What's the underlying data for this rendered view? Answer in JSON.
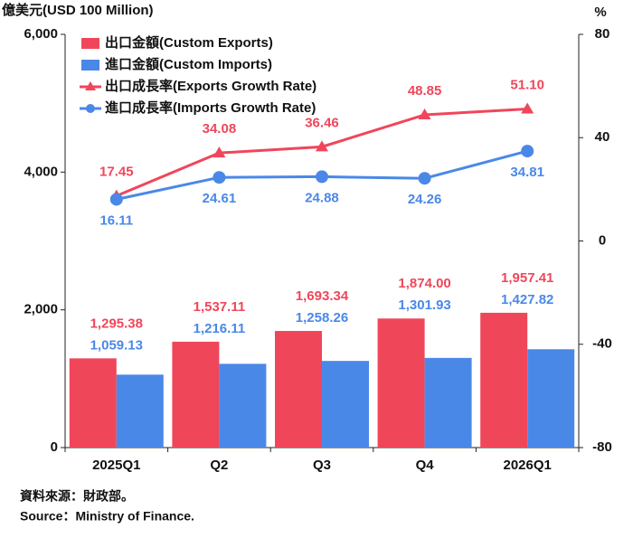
{
  "chart_data": {
    "type": "bar",
    "y_label": "億美元(USD 100 Million)",
    "y2_label": "%",
    "categories": [
      "2025Q1",
      "Q2",
      "Q3",
      "Q4",
      "2026Q1"
    ],
    "ylim": [
      0,
      6000
    ],
    "yticks": [
      0,
      {
        "value": 2000,
        "label": "2,000"
      },
      {
        "value": 4000,
        "label": "4,000"
      },
      {
        "value": 6000,
        "label": "6,000"
      }
    ],
    "y2lim": [
      -80,
      80
    ],
    "y2ticks": [
      -80,
      -40,
      0,
      40,
      80
    ],
    "legend": "upper left",
    "series": [
      {
        "name": "出口金額(Custom Exports)",
        "type": "bar",
        "color": "#f0465a",
        "values": [
          1295.38,
          1537.11,
          1693.34,
          1874.0,
          1957.41
        ],
        "value_labels": [
          "1,295.38",
          "1,537.11",
          "1,693.34",
          "1,874.00",
          "1,957.41"
        ]
      },
      {
        "name": "進口金額(Custom Imports)",
        "type": "bar",
        "color": "#4a88e8",
        "values": [
          1059.13,
          1216.11,
          1258.26,
          1301.93,
          1427.82
        ],
        "value_labels": [
          "1,059.13",
          "1,216.11",
          "1,258.26",
          "1,301.93",
          "1,427.82"
        ]
      },
      {
        "name": "出口成長率(Exports Growth Rate)",
        "type": "line",
        "axis": "y2",
        "color": "#f0465a",
        "values": [
          17.45,
          34.08,
          36.46,
          48.85,
          51.1
        ],
        "value_labels": [
          "17.45",
          "34.08",
          "36.46",
          "48.85",
          "51.10"
        ]
      },
      {
        "name": "進口成長率(Imports Growth Rate)",
        "type": "line",
        "axis": "y2",
        "color": "#4a88e8",
        "values": [
          16.11,
          24.61,
          24.88,
          24.26,
          34.81
        ],
        "value_labels": [
          "16.11",
          "24.61",
          "24.88",
          "24.26",
          "34.81"
        ]
      }
    ],
    "notes": [
      "資料來源：財政部。",
      "Source：Ministry of Finance."
    ]
  }
}
